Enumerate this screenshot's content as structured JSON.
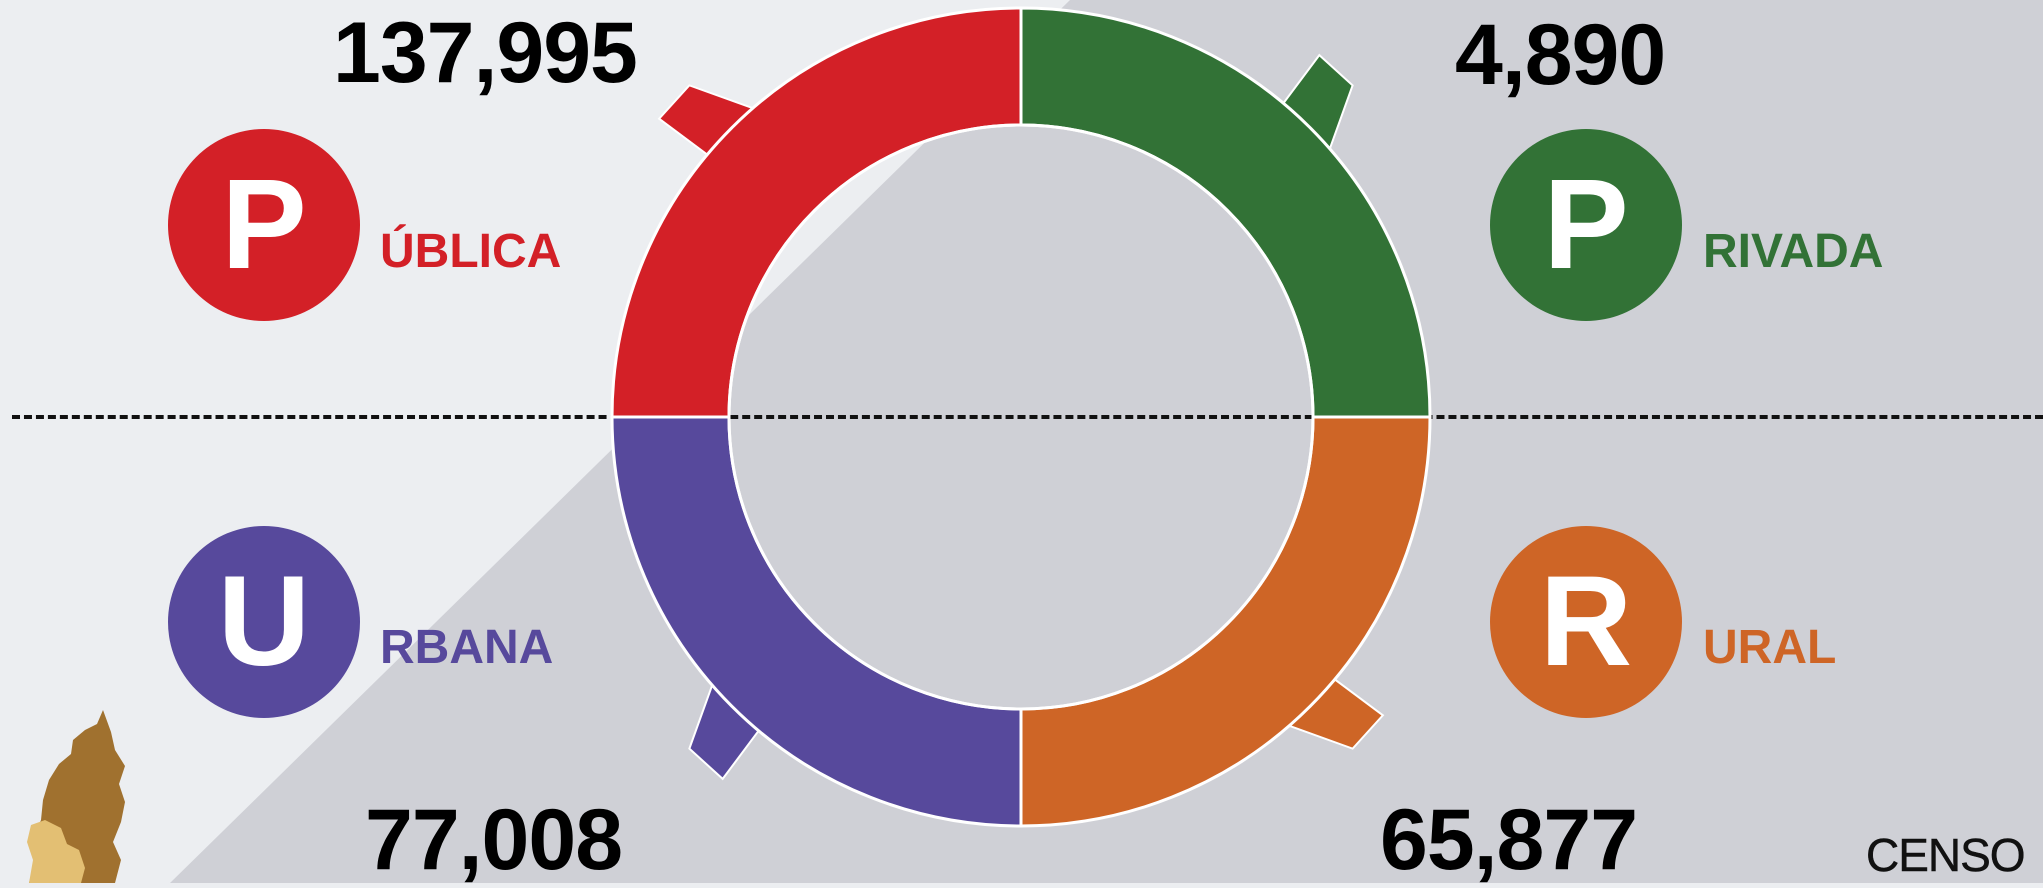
{
  "chart_data": {
    "type": "pie",
    "style": "donut",
    "title": "",
    "segments": [
      {
        "letter": "P",
        "rest": "ÚBLICA",
        "label": "PÚBLICA",
        "value": 137995,
        "display": "137,995",
        "color": "#d32027"
      },
      {
        "letter": "P",
        "rest": "RIVADA",
        "label": "PRIVADA",
        "value": 4890,
        "display": "4,890",
        "color": "#327236"
      },
      {
        "letter": "U",
        "rest": "RBANA",
        "label": "URBANA",
        "value": 77008,
        "display": "77,008",
        "color": "#57499c"
      },
      {
        "letter": "R",
        "rest": "URAL",
        "label": "RURAL",
        "value": 65877,
        "display": "65,877",
        "color": "#ce6526"
      }
    ]
  },
  "footer": {
    "brand": "CENSO"
  },
  "colors": {
    "background": "#eceef1",
    "background_dark": "#cfd0d6",
    "ring_outline": "#ffffff"
  },
  "icons": [
    "map-icon"
  ]
}
